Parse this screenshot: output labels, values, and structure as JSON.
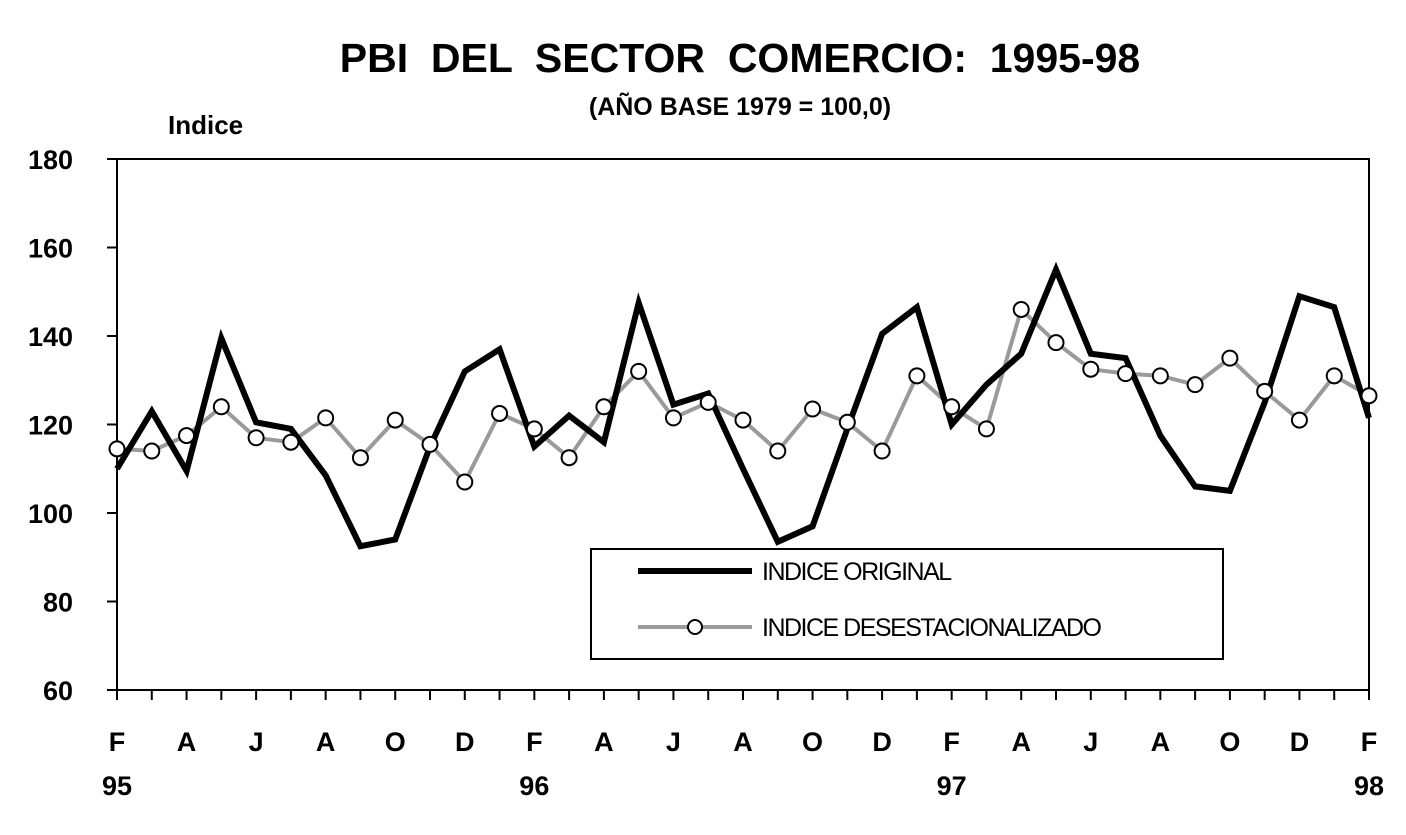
{
  "chart_data": {
    "type": "line",
    "title": "PBI  DEL  SECTOR  COMERCIO:  1995-98",
    "subtitle": "(AÑO BASE 1979 = 100,0)",
    "ylabel": "Indice",
    "xlabel": "",
    "ylim": [
      60,
      180
    ],
    "yticks": [
      "60",
      "80",
      "100",
      "120",
      "140",
      "160",
      "180"
    ],
    "x_month_labels": [
      "F",
      "A",
      "J",
      "A",
      "O",
      "D",
      "F",
      "A",
      "J",
      "A",
      "O",
      "D",
      "F",
      "A",
      "J",
      "A",
      "O",
      "D",
      "F"
    ],
    "x_year_labels": [
      "95",
      "96",
      "97",
      "98"
    ],
    "grid": false,
    "legend_position": "bottom-right",
    "series": [
      {
        "name": "INDICE ORIGINAL",
        "color": "#000000",
        "style": "thick-solid",
        "values": [
          110,
          123,
          109.5,
          139.5,
          120.5,
          119,
          108.5,
          92.5,
          94,
          115,
          132,
          137,
          115,
          122,
          116,
          147.5,
          124.5,
          127,
          110,
          93.5,
          97,
          119,
          140.5,
          146.5,
          120,
          129,
          136,
          155,
          136,
          135,
          117.5,
          106,
          105,
          125,
          149,
          146.5,
          121.5
        ]
      },
      {
        "name": "INDICE DESESTACIONALIZADO",
        "color": "#9a9a9a",
        "style": "grey-line-circle-markers",
        "values": [
          114.5,
          114,
          117.5,
          124,
          117,
          116,
          121.5,
          112.5,
          121,
          115.5,
          107,
          122.5,
          119,
          112.5,
          124,
          132,
          121.5,
          125,
          121,
          114,
          123.5,
          120.5,
          114,
          131,
          124,
          119,
          146,
          138.5,
          132.5,
          131.5,
          131,
          129,
          135,
          127.5,
          121,
          131,
          126.5
        ]
      }
    ]
  }
}
